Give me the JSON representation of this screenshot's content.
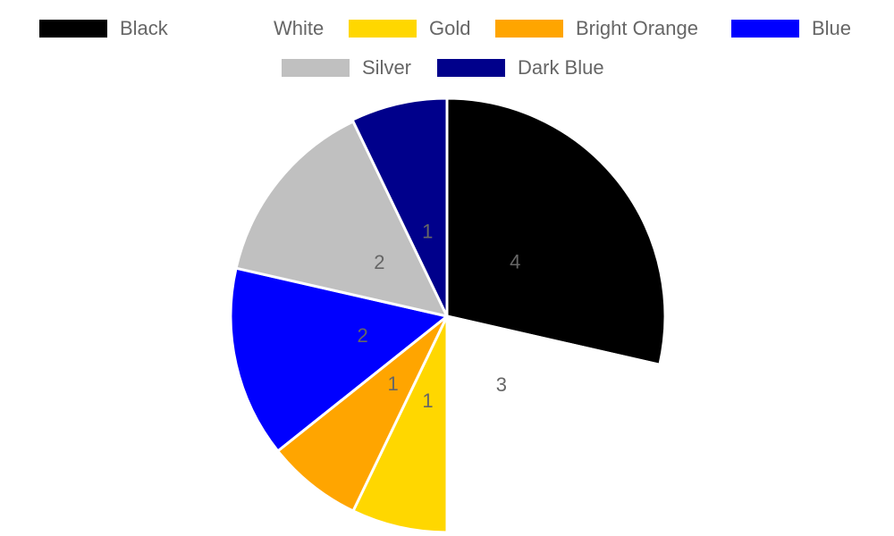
{
  "chart_data": {
    "type": "pie",
    "categories": [
      "Black",
      "White",
      "Gold",
      "Bright Orange",
      "Blue",
      "Silver",
      "Dark Blue"
    ],
    "values": [
      4,
      3,
      1,
      1,
      2,
      2,
      1
    ],
    "colors": [
      "#000000",
      "#ffffff",
      "#ffd700",
      "#ffa500",
      "#0000ff",
      "#c0c0c0",
      "#00008b"
    ],
    "data_labels": [
      "4",
      "3",
      "1",
      "1",
      "2",
      "2",
      "1"
    ],
    "legend_position": "top"
  }
}
